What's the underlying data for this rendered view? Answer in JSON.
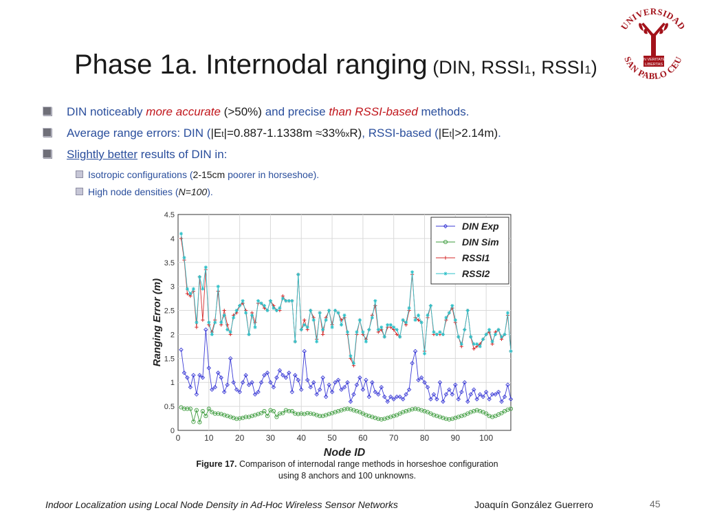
{
  "slide": {
    "title_main": "Phase 1a. Internodal ranging",
    "title_open": " (DIN, RSSI",
    "title_sub1": "1",
    "title_mid": ", RSSI",
    "title_sub2": "1",
    "title_close": ")"
  },
  "logo": {
    "arc_top": "UNIVERSIDAD",
    "arc_bottom": "SAN PABLO CEU",
    "motto1": "IN VERITATE",
    "motto2": "LIBERTAS",
    "color": "#a3121a"
  },
  "bullets": {
    "b1": {
      "a": "DIN noticeably ",
      "b": "more accurate",
      "c": " (>50%) ",
      "d": "and precise ",
      "e": "than RSSI-based",
      "f": " methods."
    },
    "b2": {
      "a": "Average range errors: DIN (",
      "b": "|E",
      "c": "t",
      "d": "|=0.887-1.1338m ≈33%",
      "e": "x",
      "f": "R)",
      "g": ", RSSI-based (",
      "h": "|E",
      "i": "t",
      "j": "|>2.14m)",
      "k": "."
    },
    "b3": {
      "a": "Slightly better",
      "b": " results of DIN in:"
    },
    "s1": {
      "a": "Isotropic configurations (",
      "b": "2-15cm",
      "c": " poorer in horseshoe)."
    },
    "s2": {
      "a": "High node densities (",
      "b": "N=100",
      "c": ")."
    }
  },
  "chart_data": {
    "type": "line",
    "xlabel": "Node ID",
    "ylabel": "Ranging Error (m)",
    "xlim": [
      0,
      108
    ],
    "ylim": [
      0,
      4.5
    ],
    "grid": true,
    "legend_position": "top-right",
    "xticks": [
      0,
      10,
      20,
      30,
      40,
      50,
      60,
      70,
      80,
      90,
      100
    ],
    "yticks": [
      0,
      0.5,
      1,
      1.5,
      2,
      2.5,
      3,
      3.5,
      4,
      4.5
    ],
    "x": [
      1,
      2,
      3,
      4,
      5,
      6,
      7,
      8,
      9,
      10,
      11,
      12,
      13,
      14,
      15,
      16,
      17,
      18,
      19,
      20,
      21,
      22,
      23,
      24,
      25,
      26,
      27,
      28,
      29,
      30,
      31,
      32,
      33,
      34,
      35,
      36,
      37,
      38,
      39,
      40,
      41,
      42,
      43,
      44,
      45,
      46,
      47,
      48,
      49,
      50,
      51,
      52,
      53,
      54,
      55,
      56,
      57,
      58,
      59,
      60,
      61,
      62,
      63,
      64,
      65,
      66,
      67,
      68,
      69,
      70,
      71,
      72,
      73,
      74,
      75,
      76,
      77,
      78,
      79,
      80,
      81,
      82,
      83,
      84,
      85,
      86,
      87,
      88,
      89,
      90,
      91,
      92,
      93,
      94,
      95,
      96,
      97,
      98,
      99,
      100,
      101,
      102,
      103,
      104,
      105,
      106,
      107,
      108
    ],
    "series": [
      {
        "name": "DIN Exp",
        "color": "#3a3ad6",
        "marker": "diamond",
        "values": [
          1.68,
          1.2,
          1.1,
          0.9,
          1.15,
          0.75,
          1.15,
          1.1,
          2.1,
          1.3,
          0.85,
          0.9,
          1.2,
          1.1,
          0.8,
          0.95,
          1.5,
          1.0,
          0.85,
          0.8,
          1.0,
          1.15,
          0.95,
          1.0,
          0.75,
          0.8,
          1.0,
          1.15,
          1.2,
          1.0,
          0.9,
          1.1,
          1.25,
          1.15,
          1.1,
          1.2,
          0.8,
          1.15,
          1.05,
          0.85,
          1.65,
          1.05,
          0.9,
          1.0,
          0.75,
          0.85,
          1.1,
          0.7,
          0.95,
          0.8,
          1.0,
          1.05,
          0.85,
          0.9,
          1.0,
          0.6,
          0.75,
          0.95,
          1.1,
          0.85,
          1.05,
          0.7,
          1.0,
          0.8,
          0.75,
          0.9,
          0.7,
          0.6,
          0.7,
          0.65,
          0.7,
          0.7,
          0.65,
          0.75,
          0.85,
          1.4,
          1.65,
          1.05,
          1.1,
          1.0,
          0.9,
          0.65,
          0.75,
          0.65,
          1.0,
          0.6,
          0.75,
          0.85,
          0.75,
          0.95,
          0.65,
          0.8,
          1.0,
          0.6,
          0.75,
          0.85,
          0.65,
          0.75,
          0.7,
          0.8,
          0.65,
          0.75,
          0.75,
          0.8,
          0.6,
          0.7,
          0.95,
          0.65
        ]
      },
      {
        "name": "DIN Sim",
        "color": "#3a9a3a",
        "marker": "circle",
        "values": [
          0.48,
          0.45,
          0.45,
          0.45,
          0.18,
          0.42,
          0.17,
          0.4,
          0.3,
          0.45,
          0.38,
          0.35,
          0.35,
          0.34,
          0.32,
          0.3,
          0.28,
          0.26,
          0.24,
          0.25,
          0.26,
          0.28,
          0.28,
          0.3,
          0.32,
          0.34,
          0.36,
          0.4,
          0.3,
          0.42,
          0.4,
          0.28,
          0.35,
          0.36,
          0.42,
          0.4,
          0.4,
          0.35,
          0.34,
          0.35,
          0.34,
          0.36,
          0.35,
          0.34,
          0.32,
          0.3,
          0.3,
          0.32,
          0.34,
          0.36,
          0.38,
          0.4,
          0.42,
          0.44,
          0.45,
          0.44,
          0.42,
          0.4,
          0.38,
          0.35,
          0.32,
          0.3,
          0.28,
          0.26,
          0.24,
          0.23,
          0.24,
          0.26,
          0.28,
          0.3,
          0.32,
          0.35,
          0.38,
          0.4,
          0.42,
          0.44,
          0.45,
          0.44,
          0.42,
          0.4,
          0.38,
          0.35,
          0.32,
          0.3,
          0.28,
          0.26,
          0.24,
          0.23,
          0.24,
          0.26,
          0.28,
          0.3,
          0.32,
          0.35,
          0.38,
          0.4,
          0.42,
          0.4,
          0.38,
          0.35,
          0.3,
          0.28,
          0.3,
          0.33,
          0.36,
          0.4,
          0.43,
          0.45
        ]
      },
      {
        "name": "RSSI1",
        "color": "#d42a2a",
        "marker": "plus",
        "values": [
          4.0,
          3.55,
          2.85,
          2.8,
          2.9,
          2.15,
          3.2,
          2.3,
          3.35,
          2.2,
          2.05,
          2.3,
          2.9,
          2.2,
          2.5,
          2.2,
          2.0,
          2.4,
          2.45,
          2.6,
          2.65,
          2.5,
          2.0,
          2.45,
          2.25,
          2.65,
          2.65,
          2.55,
          2.5,
          2.7,
          2.6,
          2.5,
          2.5,
          2.8,
          2.7,
          2.7,
          2.7,
          1.85,
          3.25,
          2.1,
          2.3,
          2.1,
          2.5,
          2.35,
          1.9,
          2.45,
          2.0,
          2.35,
          2.5,
          2.2,
          2.5,
          2.45,
          2.3,
          2.35,
          2.0,
          1.5,
          1.35,
          2.0,
          2.3,
          2.0,
          1.9,
          2.1,
          2.4,
          2.6,
          2.05,
          2.1,
          1.95,
          2.15,
          2.15,
          2.1,
          2.0,
          1.95,
          2.3,
          2.2,
          2.5,
          3.25,
          2.35,
          2.3,
          2.25,
          1.65,
          2.35,
          2.6,
          2.0,
          2.0,
          2.0,
          2.0,
          2.3,
          2.45,
          2.55,
          2.25,
          1.95,
          1.75,
          2.1,
          2.5,
          1.95,
          1.7,
          1.75,
          1.8,
          1.9,
          2.0,
          2.05,
          1.8,
          2.05,
          2.1,
          1.9,
          2.0,
          2.4,
          1.65
        ]
      },
      {
        "name": "RSSI2",
        "color": "#2ec0c8",
        "marker": "star",
        "values": [
          4.1,
          3.6,
          2.95,
          2.85,
          2.95,
          2.25,
          3.2,
          2.95,
          3.4,
          2.25,
          2.0,
          2.25,
          3.0,
          2.25,
          2.4,
          2.1,
          2.05,
          2.35,
          2.5,
          2.6,
          2.7,
          2.45,
          2.0,
          2.4,
          2.15,
          2.7,
          2.65,
          2.6,
          2.5,
          2.7,
          2.55,
          2.5,
          2.55,
          2.75,
          2.7,
          2.7,
          2.7,
          1.85,
          3.25,
          2.1,
          2.2,
          2.15,
          2.5,
          2.3,
          1.85,
          2.45,
          2.1,
          2.3,
          2.5,
          2.15,
          2.5,
          2.45,
          2.2,
          2.4,
          2.05,
          1.55,
          1.4,
          2.05,
          2.3,
          2.05,
          1.85,
          2.1,
          2.35,
          2.7,
          2.1,
          2.15,
          1.95,
          2.2,
          2.2,
          2.15,
          2.1,
          1.95,
          2.3,
          2.25,
          2.55,
          3.3,
          2.3,
          2.4,
          2.25,
          1.6,
          2.4,
          2.6,
          2.05,
          2.0,
          2.05,
          2.0,
          2.35,
          2.45,
          2.6,
          2.3,
          1.95,
          1.8,
          2.1,
          2.5,
          1.95,
          1.8,
          1.8,
          1.75,
          1.9,
          2.0,
          2.1,
          1.85,
          2.0,
          2.1,
          1.95,
          2.0,
          2.45,
          1.65
        ]
      }
    ]
  },
  "caption": {
    "label": "Figure 17.",
    "text": " Comparison of internodal range methods in horseshoe configuration using 8 anchors and 100 unknowns."
  },
  "footer": {
    "left": "Indoor Localization using Local Node Density in Ad-Hoc Wireless Sensor Networks",
    "right": "Joaquín González Guerrero",
    "page": "45"
  }
}
